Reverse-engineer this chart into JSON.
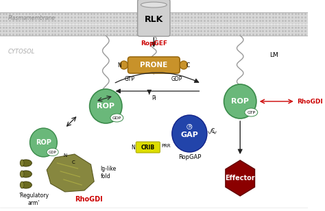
{
  "bg_color": "#ffffff",
  "membrane_label": "Plasmamembrane",
  "cytosol_label": "CYTOSOL",
  "rlk_label": "RLK",
  "ropgef_label": "RopGEF",
  "ropgef_color": "#cc0000",
  "prone_label": "PRONE",
  "prone_fill": "#c8922a",
  "prone_edge": "#9a6a10",
  "gap_label": "GAP",
  "gap_fill": "#2244aa",
  "gap_edge": "#112288",
  "ropgap_label": "RopGAP",
  "crib_label": "CRIB",
  "crib_fill": "#dddd00",
  "crib_edge": "#aaaa00",
  "prr_label": "PRR",
  "effector_label": "Effector",
  "effector_fill": "#8b0000",
  "effector_edge": "#600000",
  "rhodgdi_label": "RhoGDI",
  "rhodgdi_color": "#cc0000",
  "rop_fill": "#6ab87a",
  "rop_edge": "#3a8a4a",
  "rop_label": "ROP",
  "gdp_label": "GDP",
  "gtp_label": "GTP",
  "lm_label": "LM",
  "pi_label": "Pi",
  "ig_like_label": "Ig-like\nfold",
  "reg_arm_label": "'Regulatory\narm'",
  "wavy_color": "#999999",
  "arrow_color": "#222222",
  "mem_fill": "#d8d8d8",
  "mem_stripe": "#c0c0c0",
  "rlk_fill": "#d0d0d0",
  "rlk_edge": "#999999"
}
